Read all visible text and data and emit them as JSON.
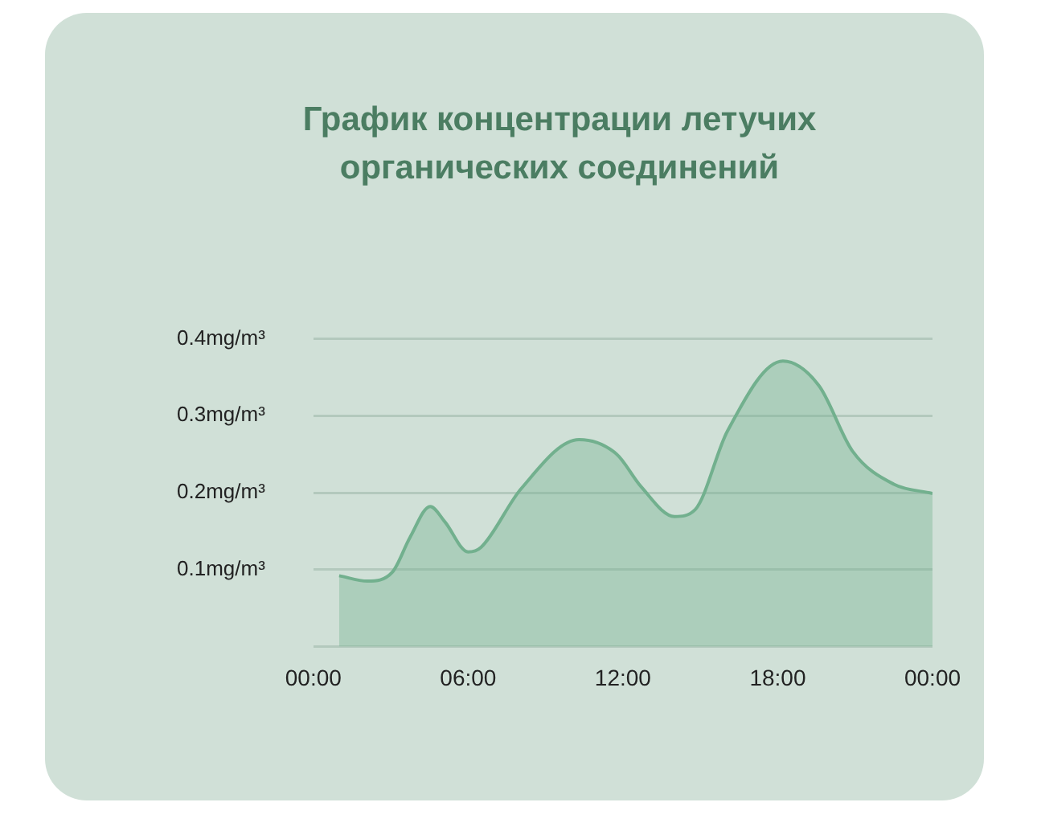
{
  "chart_data": {
    "type": "area",
    "title": "График концентрации летучих органических соединений",
    "x": [
      1.0,
      2.1,
      3.07,
      3.75,
      4.53,
      5.1,
      6.0,
      6.5,
      8.05,
      10.3,
      11.76,
      12.7,
      14.0,
      14.8,
      16.05,
      18.2,
      19.6,
      20.9,
      22.5,
      24
    ],
    "series": [
      {
        "color": "#72b08e",
        "values": [
          0.092,
          0.085,
          0.097,
          0.142,
          0.182,
          0.162,
          0.123,
          0.129,
          0.205,
          0.269,
          0.25,
          0.208,
          0.169,
          0.178,
          0.28,
          0.371,
          0.339,
          0.254,
          0.211,
          0.199
        ]
      }
    ],
    "xlim": [
      0,
      24
    ],
    "xticks": [
      {
        "value": 0,
        "label": "00:00"
      },
      {
        "value": 6,
        "label": "06:00"
      },
      {
        "value": 12,
        "label": "12:00"
      },
      {
        "value": 18,
        "label": "18:00"
      },
      {
        "value": 24,
        "label": "00:00"
      }
    ],
    "ylim": [
      0,
      0.4
    ],
    "yticks": [
      {
        "value": 0,
        "label": null
      },
      {
        "value": 0.1,
        "label": "0.1mg/m³"
      },
      {
        "value": 0.2,
        "label": "0.2mg/m³"
      },
      {
        "value": 0.3,
        "label": "0.3mg/m³"
      },
      {
        "value": 0.4,
        "label": "0.4mg/m³"
      }
    ],
    "grid": "y",
    "legend": false,
    "marker": "none",
    "line_style": "solid"
  }
}
